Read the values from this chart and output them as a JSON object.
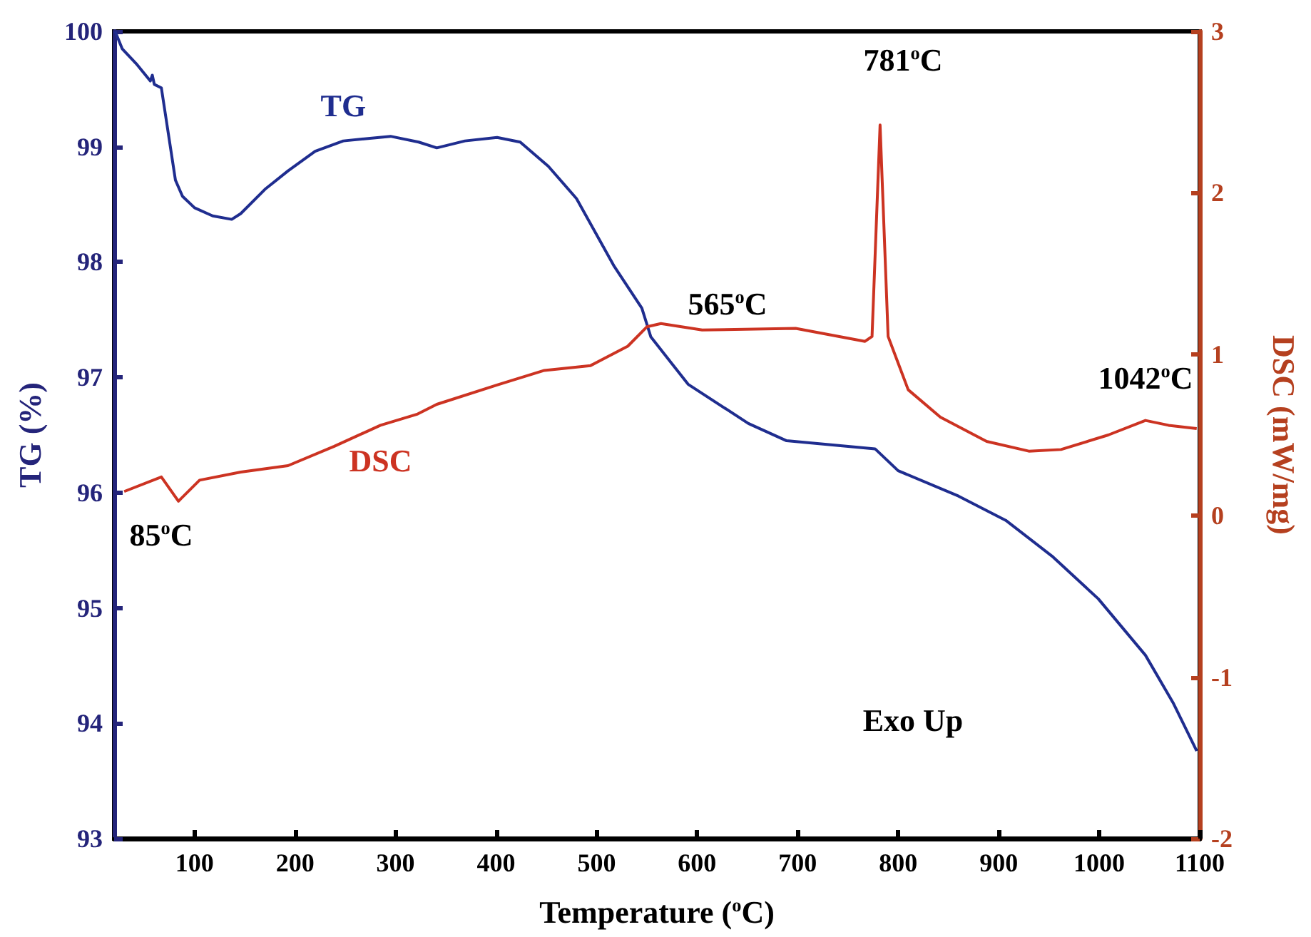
{
  "chart_data": {
    "type": "line",
    "xlabel": "Temperature ($^{o}$C)",
    "ylabel": "TG (%)",
    "y2label": "DSC (mW/mg)",
    "xlim": [
      20,
      1100
    ],
    "xticks": [
      100,
      200,
      300,
      400,
      500,
      600,
      700,
      800,
      900,
      1000,
      1100
    ],
    "ylim": [
      93,
      100
    ],
    "yticks": [
      93,
      94,
      95,
      96,
      97,
      98,
      99,
      100
    ],
    "y2lim": [
      -2,
      3
    ],
    "y2ticks": [
      -2,
      -1,
      0,
      1,
      2,
      3
    ],
    "grid": false,
    "legend": false,
    "marker": "none",
    "line_style": "solid",
    "series": [
      {
        "name": "TG",
        "color": "#1f2d8f",
        "x": [
          21,
          28,
          42,
          56,
          58,
          60,
          67,
          81,
          88,
          100,
          118,
          137,
          146,
          170,
          193,
          220,
          248,
          295,
          323,
          341,
          369,
          401,
          424,
          452,
          480,
          517,
          545,
          554,
          591,
          651,
          689,
          777,
          800,
          860,
          907,
          953,
          999,
          1046,
          1074,
          1097
        ],
        "values": [
          100,
          99.85,
          99.72,
          99.57,
          99.62,
          99.54,
          99.51,
          98.71,
          98.57,
          98.47,
          98.4,
          98.37,
          98.42,
          98.63,
          98.79,
          98.96,
          99.05,
          99.09,
          99.04,
          98.99,
          99.05,
          99.08,
          99.04,
          98.83,
          98.55,
          97.97,
          97.6,
          97.35,
          96.94,
          96.6,
          96.45,
          96.38,
          96.19,
          95.97,
          95.76,
          95.45,
          95.08,
          94.59,
          94.17,
          93.76
        ]
      },
      {
        "name": "DSC",
        "color": "#cc3322",
        "axis": "y2",
        "x": [
          30,
          67,
          84,
          105,
          146,
          193,
          239,
          285,
          322,
          341,
          401,
          448,
          494,
          531,
          550,
          564,
          605,
          698,
          767,
          774,
          782,
          790,
          810,
          842,
          888,
          930,
          962,
          1009,
          1046,
          1069,
          1097
        ],
        "values": [
          0.15,
          0.24,
          0.09,
          0.22,
          0.27,
          0.31,
          0.43,
          0.56,
          0.63,
          0.69,
          0.81,
          0.9,
          0.93,
          1.05,
          1.17,
          1.19,
          1.15,
          1.16,
          1.08,
          1.11,
          2.42,
          1.11,
          0.78,
          0.61,
          0.46,
          0.4,
          0.41,
          0.5,
          0.59,
          0.56,
          0.54
        ]
      }
    ],
    "annotations": [
      "85$^{o}$C",
      "565$^{o}$C",
      "781$^{o}$C",
      "1042$^{o}$C",
      "Exo Up"
    ]
  }
}
